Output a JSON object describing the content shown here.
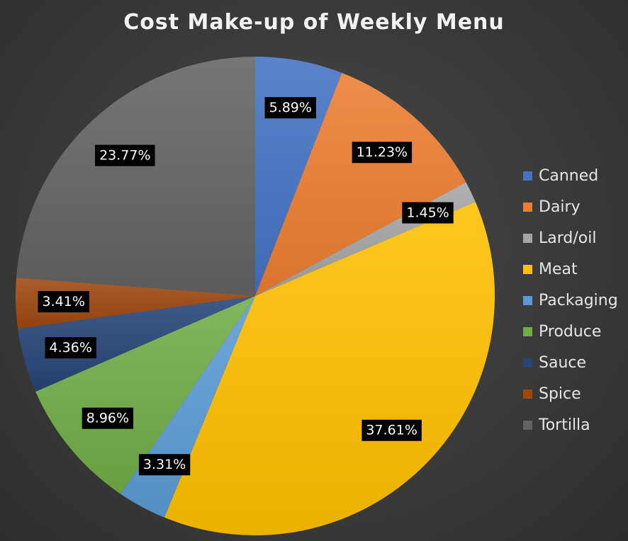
{
  "chart_data": {
    "type": "pie",
    "title": "Cost Make-up of Weekly Menu",
    "legend_position": "right",
    "slices": [
      {
        "name": "Canned",
        "value": 5.89,
        "label": "5.89%",
        "color": "#4472c4"
      },
      {
        "name": "Dairy",
        "value": 11.23,
        "label": "11.23%",
        "color": "#ed7d31"
      },
      {
        "name": "Lard/oil",
        "value": 1.45,
        "label": "1.45%",
        "color": "#a5a5a5"
      },
      {
        "name": "Meat",
        "value": 37.61,
        "label": "37.61%",
        "color": "#ffc000"
      },
      {
        "name": "Packaging",
        "value": 3.31,
        "label": "3.31%",
        "color": "#5b9bd5"
      },
      {
        "name": "Produce",
        "value": 8.96,
        "label": "8.96%",
        "color": "#70ad47"
      },
      {
        "name": "Sauce",
        "value": 4.36,
        "label": "4.36%",
        "color": "#264478"
      },
      {
        "name": "Spice",
        "value": 3.41,
        "label": "3.41%",
        "color": "#9e480e"
      },
      {
        "name": "Tortilla",
        "value": 23.77,
        "label": "23.77%",
        "color": "#636363"
      }
    ]
  }
}
